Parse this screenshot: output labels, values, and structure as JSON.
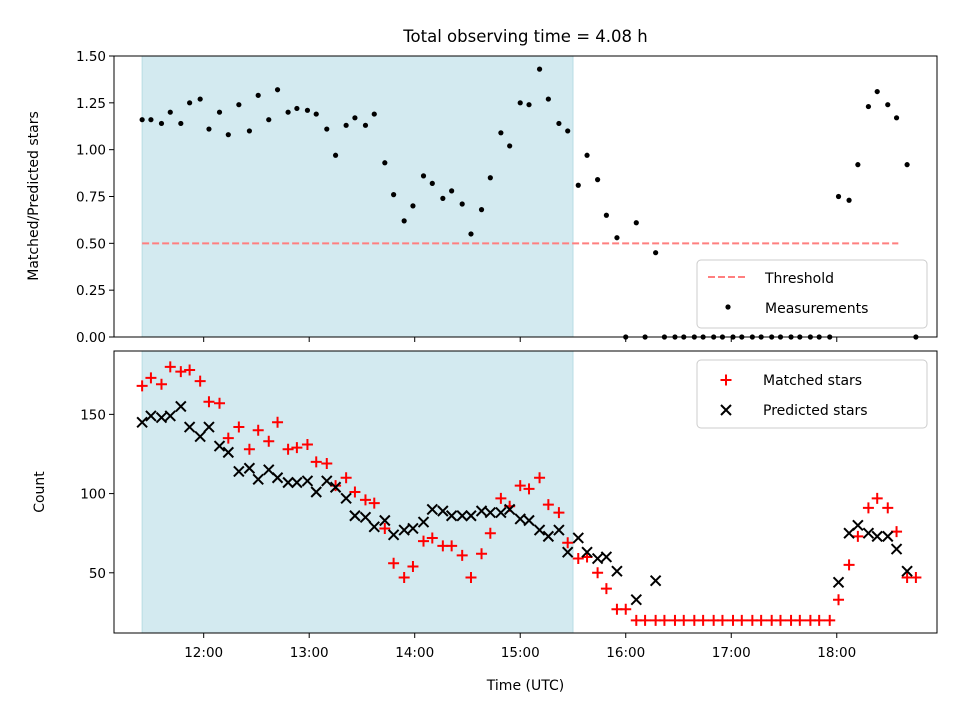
{
  "chart_data": [
    {
      "type": "scatter",
      "title": "Total observing time = 4.08 h",
      "xlabel": "",
      "ylabel": "Matched/Predicted stars",
      "ylim": [
        0,
        1.5
      ],
      "yticks": [
        "0.00",
        "0.25",
        "0.50",
        "0.75",
        "1.00",
        "1.25",
        "1.50"
      ],
      "shaded_region": {
        "x_start": "11:25",
        "x_end": "15:30",
        "color": "#d3eaf0"
      },
      "threshold": {
        "name": "Threshold",
        "value": 0.5,
        "x_start": "11:25",
        "x_end": "18:35",
        "color": "#ff7f7f"
      },
      "series": [
        {
          "name": "Measurements",
          "color": "#000000",
          "points": [
            [
              "11:25",
              1.16
            ],
            [
              "11:30",
              1.16
            ],
            [
              "11:36",
              1.14
            ],
            [
              "11:41",
              1.2
            ],
            [
              "11:47",
              1.14
            ],
            [
              "11:52",
              1.25
            ],
            [
              "11:58",
              1.27
            ],
            [
              "12:03",
              1.11
            ],
            [
              "12:09",
              1.2
            ],
            [
              "12:14",
              1.08
            ],
            [
              "12:20",
              1.24
            ],
            [
              "12:26",
              1.1
            ],
            [
              "12:31",
              1.29
            ],
            [
              "12:37",
              1.16
            ],
            [
              "12:42",
              1.32
            ],
            [
              "12:48",
              1.2
            ],
            [
              "12:53",
              1.22
            ],
            [
              "12:59",
              1.21
            ],
            [
              "13:04",
              1.19
            ],
            [
              "13:10",
              1.11
            ],
            [
              "13:15",
              0.97
            ],
            [
              "13:21",
              1.13
            ],
            [
              "13:26",
              1.17
            ],
            [
              "13:32",
              1.13
            ],
            [
              "13:37",
              1.19
            ],
            [
              "13:43",
              0.93
            ],
            [
              "13:48",
              0.76
            ],
            [
              "13:54",
              0.62
            ],
            [
              "13:59",
              0.7
            ],
            [
              "14:05",
              0.86
            ],
            [
              "14:10",
              0.82
            ],
            [
              "14:16",
              0.74
            ],
            [
              "14:21",
              0.78
            ],
            [
              "14:27",
              0.71
            ],
            [
              "14:32",
              0.55
            ],
            [
              "14:38",
              0.68
            ],
            [
              "14:43",
              0.85
            ],
            [
              "14:49",
              1.09
            ],
            [
              "14:54",
              1.02
            ],
            [
              "15:00",
              1.25
            ],
            [
              "15:05",
              1.24
            ],
            [
              "15:11",
              1.43
            ],
            [
              "15:16",
              1.27
            ],
            [
              "15:22",
              1.14
            ],
            [
              "15:27",
              1.1
            ],
            [
              "15:33",
              0.81
            ],
            [
              "15:38",
              0.97
            ],
            [
              "15:44",
              0.84
            ],
            [
              "15:49",
              0.65
            ],
            [
              "15:55",
              0.53
            ],
            [
              "16:00",
              0.0
            ],
            [
              "16:06",
              0.61
            ],
            [
              "16:11",
              0.0
            ],
            [
              "16:17",
              0.45
            ],
            [
              "16:22",
              0.0
            ],
            [
              "16:28",
              0.0
            ],
            [
              "16:33",
              0.0
            ],
            [
              "16:39",
              0.0
            ],
            [
              "16:44",
              0.0
            ],
            [
              "16:50",
              0.0
            ],
            [
              "16:55",
              0.0
            ],
            [
              "17:01",
              0.0
            ],
            [
              "17:06",
              0.0
            ],
            [
              "17:12",
              0.0
            ],
            [
              "17:17",
              0.0
            ],
            [
              "17:23",
              0.0
            ],
            [
              "17:28",
              0.0
            ],
            [
              "17:34",
              0.0
            ],
            [
              "17:39",
              0.0
            ],
            [
              "17:45",
              0.0
            ],
            [
              "17:50",
              0.0
            ],
            [
              "17:56",
              0.0
            ],
            [
              "18:01",
              0.75
            ],
            [
              "18:07",
              0.73
            ],
            [
              "18:12",
              0.92
            ],
            [
              "18:18",
              1.23
            ],
            [
              "18:23",
              1.31
            ],
            [
              "18:29",
              1.24
            ],
            [
              "18:34",
              1.17
            ],
            [
              "18:40",
              0.92
            ],
            [
              "18:45",
              0.0
            ]
          ]
        }
      ],
      "legend": {
        "position": "bottom-right",
        "entries": [
          "Threshold",
          "Measurements"
        ]
      }
    },
    {
      "type": "scatter",
      "xlabel": "Time (UTC)",
      "ylabel": "Count",
      "ylim": [
        12,
        190
      ],
      "yticks": [
        "50",
        "100",
        "150"
      ],
      "xticks": [
        "12:00",
        "13:00",
        "14:00",
        "15:00",
        "16:00",
        "17:00",
        "18:00"
      ],
      "shaded_region": {
        "x_start": "11:25",
        "x_end": "15:30",
        "color": "#d3eaf0"
      },
      "series": [
        {
          "name": "Matched stars",
          "color": "#ff0000",
          "points": [
            [
              "11:25",
              168
            ],
            [
              "11:30",
              173
            ],
            [
              "11:36",
              169
            ],
            [
              "11:41",
              180
            ],
            [
              "11:47",
              177
            ],
            [
              "11:52",
              178
            ],
            [
              "11:58",
              171
            ],
            [
              "12:03",
              158
            ],
            [
              "12:09",
              157
            ],
            [
              "12:14",
              135
            ],
            [
              "12:20",
              142
            ],
            [
              "12:26",
              128
            ],
            [
              "12:31",
              140
            ],
            [
              "12:37",
              133
            ],
            [
              "12:42",
              145
            ],
            [
              "12:48",
              128
            ],
            [
              "12:53",
              129
            ],
            [
              "12:59",
              131
            ],
            [
              "13:04",
              120
            ],
            [
              "13:10",
              119
            ],
            [
              "13:15",
              105
            ],
            [
              "13:21",
              110
            ],
            [
              "13:26",
              101
            ],
            [
              "13:32",
              96
            ],
            [
              "13:37",
              94
            ],
            [
              "13:43",
              78
            ],
            [
              "13:48",
              56
            ],
            [
              "13:54",
              47
            ],
            [
              "13:59",
              54
            ],
            [
              "14:05",
              70
            ],
            [
              "14:10",
              72
            ],
            [
              "14:16",
              67
            ],
            [
              "14:21",
              67
            ],
            [
              "14:27",
              61
            ],
            [
              "14:32",
              47
            ],
            [
              "14:38",
              62
            ],
            [
              "14:43",
              75
            ],
            [
              "14:49",
              97
            ],
            [
              "14:54",
              92
            ],
            [
              "15:00",
              105
            ],
            [
              "15:05",
              103
            ],
            [
              "15:11",
              110
            ],
            [
              "15:16",
              93
            ],
            [
              "15:22",
              88
            ],
            [
              "15:27",
              69
            ],
            [
              "15:33",
              59
            ],
            [
              "15:38",
              60
            ],
            [
              "15:44",
              50
            ],
            [
              "15:49",
              40
            ],
            [
              "15:55",
              27
            ],
            [
              "16:00",
              27
            ],
            [
              "16:06",
              20
            ],
            [
              "16:11",
              20
            ],
            [
              "16:17",
              20
            ],
            [
              "16:22",
              20
            ],
            [
              "16:28",
              20
            ],
            [
              "16:33",
              20
            ],
            [
              "16:39",
              20
            ],
            [
              "16:44",
              20
            ],
            [
              "16:50",
              20
            ],
            [
              "16:55",
              20
            ],
            [
              "17:01",
              20
            ],
            [
              "17:06",
              20
            ],
            [
              "17:12",
              20
            ],
            [
              "17:17",
              20
            ],
            [
              "17:23",
              20
            ],
            [
              "17:28",
              20
            ],
            [
              "17:34",
              20
            ],
            [
              "17:39",
              20
            ],
            [
              "17:45",
              20
            ],
            [
              "17:50",
              20
            ],
            [
              "17:56",
              20
            ],
            [
              "18:01",
              33
            ],
            [
              "18:07",
              55
            ],
            [
              "18:12",
              73
            ],
            [
              "18:18",
              91
            ],
            [
              "18:23",
              97
            ],
            [
              "18:29",
              91
            ],
            [
              "18:34",
              76
            ],
            [
              "18:40",
              47
            ],
            [
              "18:45",
              47
            ]
          ]
        },
        {
          "name": "Predicted stars",
          "color": "#000000",
          "points": [
            [
              "11:25",
              145
            ],
            [
              "11:30",
              149
            ],
            [
              "11:36",
              148
            ],
            [
              "11:41",
              149
            ],
            [
              "11:47",
              155
            ],
            [
              "11:52",
              142
            ],
            [
              "11:58",
              136
            ],
            [
              "12:03",
              142
            ],
            [
              "12:09",
              130
            ],
            [
              "12:14",
              126
            ],
            [
              "12:20",
              114
            ],
            [
              "12:26",
              116
            ],
            [
              "12:31",
              109
            ],
            [
              "12:37",
              115
            ],
            [
              "12:42",
              110
            ],
            [
              "12:48",
              107
            ],
            [
              "12:53",
              107
            ],
            [
              "12:59",
              108
            ],
            [
              "13:04",
              101
            ],
            [
              "13:10",
              108
            ],
            [
              "13:15",
              104
            ],
            [
              "13:21",
              97
            ],
            [
              "13:26",
              86
            ],
            [
              "13:32",
              85
            ],
            [
              "13:37",
              79
            ],
            [
              "13:43",
              83
            ],
            [
              "13:48",
              74
            ],
            [
              "13:54",
              77
            ],
            [
              "13:59",
              78
            ],
            [
              "14:05",
              82
            ],
            [
              "14:10",
              90
            ],
            [
              "14:16",
              89
            ],
            [
              "14:21",
              86
            ],
            [
              "14:27",
              86
            ],
            [
              "14:32",
              86
            ],
            [
              "14:38",
              89
            ],
            [
              "14:43",
              88
            ],
            [
              "14:49",
              88
            ],
            [
              "14:54",
              90
            ],
            [
              "15:00",
              84
            ],
            [
              "15:05",
              83
            ],
            [
              "15:11",
              77
            ],
            [
              "15:16",
              73
            ],
            [
              "15:22",
              77
            ],
            [
              "15:27",
              63
            ],
            [
              "15:33",
              72
            ],
            [
              "15:38",
              63
            ],
            [
              "15:44",
              59
            ],
            [
              "15:49",
              60
            ],
            [
              "15:55",
              51
            ],
            [
              "16:06",
              33
            ],
            [
              "16:17",
              45
            ],
            [
              "18:01",
              44
            ],
            [
              "18:07",
              75
            ],
            [
              "18:12",
              80
            ],
            [
              "18:18",
              75
            ],
            [
              "18:23",
              73
            ],
            [
              "18:29",
              73
            ],
            [
              "18:34",
              65
            ],
            [
              "18:40",
              51
            ]
          ]
        }
      ],
      "legend": {
        "position": "top-right",
        "entries": [
          "Matched stars",
          "Predicted stars"
        ]
      }
    }
  ]
}
